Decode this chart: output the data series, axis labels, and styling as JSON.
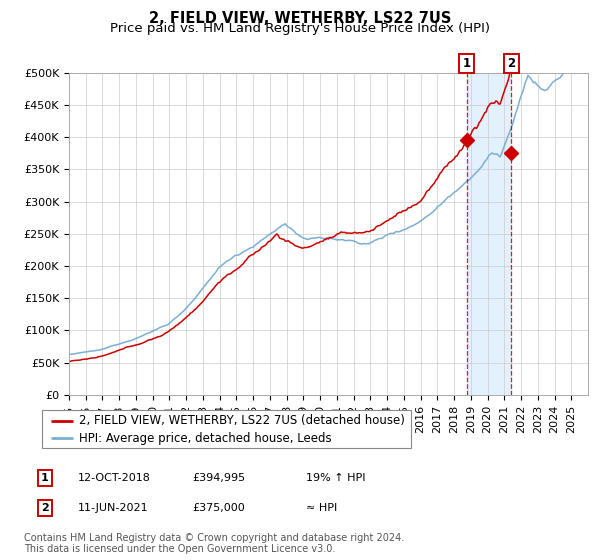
{
  "title": "2, FIELD VIEW, WETHERBY, LS22 7US",
  "subtitle": "Price paid vs. HM Land Registry's House Price Index (HPI)",
  "ylim": [
    0,
    500000
  ],
  "yticks": [
    0,
    50000,
    100000,
    150000,
    200000,
    250000,
    300000,
    350000,
    400000,
    450000,
    500000
  ],
  "ytick_labels": [
    "£0",
    "£50K",
    "£100K",
    "£150K",
    "£200K",
    "£250K",
    "£300K",
    "£350K",
    "£400K",
    "£450K",
    "£500K"
  ],
  "x_start_year": 1995,
  "x_end_year": 2025,
  "hpi_color": "#7bafd4",
  "price_color": "#cc0000",
  "bg_color": "#ffffff",
  "grid_color": "#cccccc",
  "shade_color": "#ddeeff",
  "vline_color": "#cc0000",
  "legend_entry1": "2, FIELD VIEW, WETHERBY, LS22 7US (detached house)",
  "legend_entry2": "HPI: Average price, detached house, Leeds",
  "sale1_date": "12-OCT-2018",
  "sale1_price": "£394,995",
  "sale1_hpi": "19% ↑ HPI",
  "sale2_date": "11-JUN-2021",
  "sale2_price": "£375,000",
  "sale2_hpi": "≈ HPI",
  "footnote": "Contains HM Land Registry data © Crown copyright and database right 2024.\nThis data is licensed under the Open Government Licence v3.0.",
  "title_fontsize": 10.5,
  "subtitle_fontsize": 9.5,
  "tick_fontsize": 8,
  "legend_fontsize": 8.5,
  "footnote_fontsize": 7
}
